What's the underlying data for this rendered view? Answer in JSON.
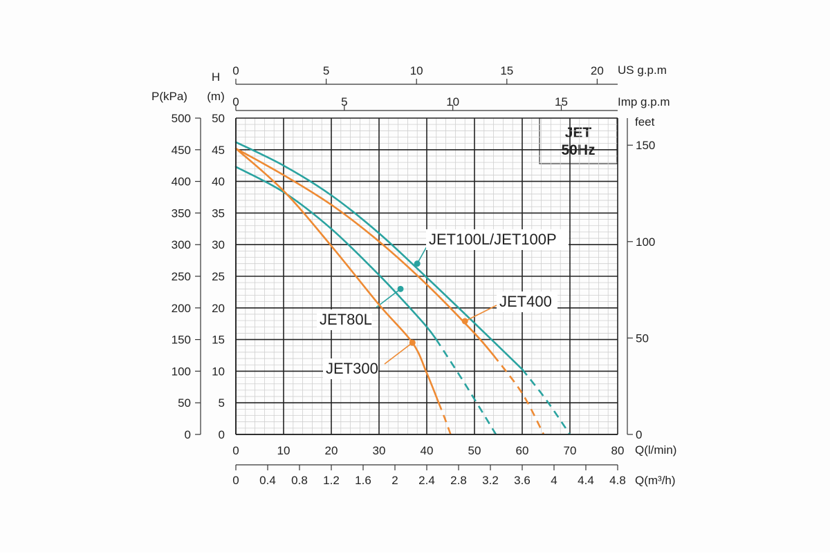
{
  "chart_data": {
    "type": "line",
    "badge": {
      "line1": "JET",
      "line2": "50Hz"
    },
    "x_axis": {
      "label": "Q(l/min)",
      "range": [
        0,
        80
      ],
      "ticks": [
        0,
        10,
        20,
        30,
        40,
        50,
        60,
        70,
        80
      ]
    },
    "x2_axis": {
      "label": "Q(m³/h)",
      "range": [
        0,
        4.8
      ],
      "ticks": [
        "0",
        "0.4",
        "0.8",
        "1.2",
        "1.6",
        "2",
        "2.4",
        "2.8",
        "3.2",
        "3.6",
        "4",
        "4.4",
        "4.8"
      ]
    },
    "top_axis_us": {
      "label": "US g.p.m",
      "ticks": [
        0,
        5,
        10,
        15,
        20
      ]
    },
    "top_axis_imp": {
      "label": "Imp g.p.m",
      "ticks": [
        0,
        5,
        10,
        15
      ]
    },
    "y_axis": {
      "label_line1": "H",
      "label_line2": "(m)",
      "range": [
        0,
        50
      ],
      "ticks": [
        0,
        5,
        10,
        15,
        20,
        25,
        30,
        35,
        40,
        45,
        50
      ]
    },
    "pressure_axis": {
      "label": "P(kPa)",
      "ticks": [
        0,
        50,
        100,
        150,
        200,
        250,
        300,
        350,
        400,
        450,
        500
      ]
    },
    "feet_axis": {
      "label": "feet",
      "ticks": [
        0,
        50,
        100,
        150
      ]
    },
    "grid": true,
    "series": [
      {
        "name": "JET100L/JET100P",
        "color": "#2aa3a0",
        "solid": [
          [
            0,
            46.2
          ],
          [
            10,
            42.5
          ],
          [
            20,
            37.8
          ],
          [
            30,
            31.8
          ],
          [
            40,
            24.8
          ],
          [
            50,
            17.6
          ],
          [
            60,
            10.3
          ]
        ],
        "dashed": [
          [
            60,
            10.3
          ],
          [
            65,
            5.5
          ],
          [
            70,
            0
          ]
        ],
        "marker": [
          38,
          27
        ]
      },
      {
        "name": "JET400",
        "color": "#ee8a33",
        "solid": [
          [
            0,
            45.2
          ],
          [
            10,
            41
          ],
          [
            20,
            36.3
          ],
          [
            30,
            30.5
          ],
          [
            40,
            23.7
          ],
          [
            50,
            16
          ],
          [
            54,
            12.5
          ]
        ],
        "dashed": [
          [
            54,
            12.5
          ],
          [
            60,
            6.5
          ],
          [
            64.5,
            0
          ]
        ],
        "marker": [
          48,
          17.9
        ]
      },
      {
        "name": "JET80L",
        "color": "#2aa3a0",
        "solid": [
          [
            0,
            42.3
          ],
          [
            10,
            38.3
          ],
          [
            20,
            32.5
          ],
          [
            30,
            25.2
          ],
          [
            35,
            21.2
          ],
          [
            40,
            17
          ],
          [
            42,
            15
          ]
        ],
        "dashed": [
          [
            42,
            15
          ],
          [
            48,
            8
          ],
          [
            54.5,
            0
          ]
        ],
        "marker": [
          34.5,
          23
        ]
      },
      {
        "name": "JET300",
        "color": "#ee8a33",
        "solid": [
          [
            0,
            45.2
          ],
          [
            10,
            38.5
          ],
          [
            20,
            29.8
          ],
          [
            30,
            20.5
          ],
          [
            37,
            14.5
          ],
          [
            40,
            9.7
          ],
          [
            42.5,
            5
          ]
        ],
        "dashed": [
          [
            42.5,
            5
          ],
          [
            43.8,
            2.5
          ],
          [
            45,
            0
          ]
        ],
        "marker": [
          37,
          14.5
        ]
      }
    ]
  }
}
